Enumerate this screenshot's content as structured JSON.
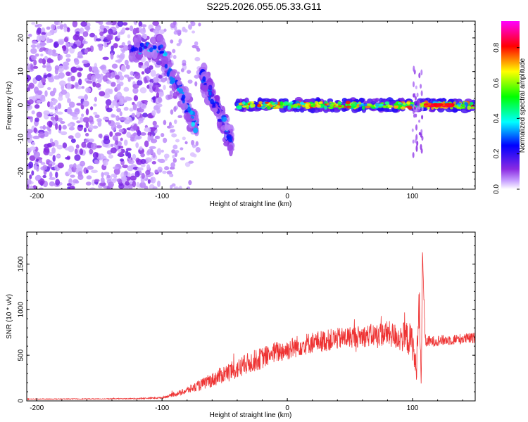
{
  "title": "S225.2026.055.05.33.G11",
  "chart_data": [
    {
      "type": "heatmap",
      "xlabel": "Height of straight line (km)",
      "ylabel": "Frequency (Hz)",
      "xlim": [
        -208,
        150
      ],
      "ylim": [
        -25,
        25
      ],
      "x_ticks": [
        -200,
        -100,
        0,
        100
      ],
      "y_ticks": [
        -20,
        -10,
        0,
        10,
        20
      ],
      "colorbar": {
        "label": "Normalized spectral amplitude",
        "range": [
          0,
          0.95
        ],
        "ticks": [
          0.0,
          0.2,
          0.4,
          0.6,
          0.8
        ],
        "tick_labels": [
          "0.0",
          "0.2",
          "0.4",
          "0.6",
          "0.8"
        ],
        "colormap": [
          "#ffffff",
          "#8a2be2",
          "#0000ff",
          "#00ffff",
          "#00ff00",
          "#ffff00",
          "#ff0000",
          "#ff00ff"
        ]
      },
      "features": [
        {
          "name": "scattered noise",
          "x_range": [
            -208,
            -100
          ],
          "freq_range": [
            -25,
            25
          ],
          "amplitude": 0.1
        },
        {
          "name": "decreasing branch A",
          "points": [
            [
              -125,
              17
            ],
            [
              -100,
              17
            ],
            [
              -95,
              10
            ],
            [
              -85,
              4
            ],
            [
              -78,
              -2
            ],
            [
              -72,
              -7
            ]
          ],
          "amplitude": 0.35
        },
        {
          "name": "decreasing branch B",
          "points": [
            [
              -68,
              9
            ],
            [
              -63,
              5
            ],
            [
              -58,
              0
            ],
            [
              -52,
              -4
            ],
            [
              -48,
              -8
            ],
            [
              -45,
              -11
            ]
          ],
          "amplitude": 0.3
        },
        {
          "name": "main zero-frequency track",
          "points": [
            [
              -40,
              0
            ],
            [
              0,
              0
            ],
            [
              50,
              0
            ],
            [
              100,
              0
            ],
            [
              150,
              0
            ]
          ],
          "amplitude": 0.7
        }
      ]
    },
    {
      "type": "line",
      "xlabel": "Height of straight line (km)",
      "ylabel": "SNR (10 * v/v)",
      "xlim": [
        -208,
        150
      ],
      "ylim": [
        0,
        1850
      ],
      "x_ticks": [
        -200,
        -100,
        0,
        100
      ],
      "y_ticks": [
        0,
        500,
        1000,
        1500
      ],
      "color": "#ee3333",
      "series": [
        {
          "name": "SNR",
          "x": [
            -208,
            -150,
            -120,
            -100,
            -85,
            -70,
            -60,
            -50,
            -40,
            -30,
            -20,
            -10,
            0,
            10,
            20,
            30,
            40,
            50,
            60,
            70,
            80,
            90,
            95,
            100,
            103,
            105,
            107,
            108,
            110,
            115,
            120,
            130,
            140,
            150
          ],
          "y": [
            20,
            22,
            25,
            35,
            90,
            170,
            230,
            300,
            350,
            420,
            470,
            530,
            560,
            610,
            640,
            660,
            680,
            700,
            710,
            720,
            740,
            690,
            700,
            640,
            300,
            1100,
            200,
            1700,
            650,
            650,
            660,
            670,
            680,
            690
          ],
          "noise_amplitude": [
            4,
            4,
            6,
            10,
            30,
            60,
            80,
            100,
            110,
            120,
            120,
            120,
            120,
            120,
            120,
            120,
            120,
            120,
            120,
            130,
            140,
            150,
            180,
            200,
            150,
            200,
            120,
            100,
            80,
            60,
            60,
            60,
            60,
            60
          ]
        }
      ]
    }
  ]
}
